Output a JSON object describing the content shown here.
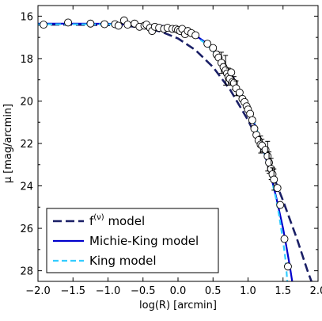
{
  "chart_data": {
    "type": "line",
    "xlabel": "log(R) [arcmin]",
    "ylabel": "μ [mag/arcmin]",
    "xlim": [
      -2.0,
      2.0
    ],
    "ylim": [
      28.5,
      15.5
    ],
    "y_inverted": true,
    "xticks": [
      -2.0,
      -1.5,
      -1.0,
      -0.5,
      0.0,
      0.5,
      1.0,
      1.5,
      2.0
    ],
    "xtick_labels": [
      "−2.0",
      "−1.5",
      "−1.0",
      "−0.5",
      "0.0",
      "0.5",
      "1.0",
      "1.5",
      "2.0"
    ],
    "yticks": [
      16,
      18,
      20,
      22,
      24,
      26,
      28
    ],
    "ytick_labels": [
      "16",
      "18",
      "20",
      "22",
      "24",
      "26",
      "28"
    ],
    "grid": false,
    "legend_position": "bottom-left",
    "legend": [
      {
        "label": "f",
        "superscript": "(ν)",
        "suffix": " model",
        "series": "fnu"
      },
      {
        "label": "Michie-King model",
        "series": "michie"
      },
      {
        "label": "King model",
        "series": "king"
      }
    ],
    "series": [
      {
        "name": "f(ν) model",
        "id": "fnu",
        "style": "dashed",
        "color": "#1a1f66",
        "x": [
          -2.0,
          -1.5,
          -1.0,
          -0.75,
          -0.5,
          -0.25,
          0.0,
          0.25,
          0.5,
          0.75,
          1.0,
          1.25,
          1.5,
          1.7,
          1.85,
          1.95
        ],
        "y": [
          16.4,
          16.4,
          16.42,
          16.45,
          16.55,
          16.72,
          17.05,
          17.6,
          18.4,
          19.5,
          20.9,
          22.6,
          24.7,
          26.5,
          28.0,
          28.9
        ]
      },
      {
        "name": "Michie-King model",
        "id": "michie",
        "style": "solid",
        "color": "#0000cc",
        "x": [
          -2.0,
          -1.5,
          -1.0,
          -0.5,
          -0.25,
          0.0,
          0.2,
          0.4,
          0.6,
          0.8,
          1.0,
          1.1,
          1.2,
          1.3,
          1.4,
          1.5,
          1.55,
          1.6,
          1.65
        ],
        "y": [
          16.35,
          16.35,
          16.36,
          16.4,
          16.45,
          16.58,
          16.8,
          17.25,
          17.95,
          18.95,
          20.3,
          21.15,
          22.1,
          23.2,
          24.5,
          26.0,
          26.9,
          27.85,
          28.9
        ]
      },
      {
        "name": "King model",
        "id": "king",
        "style": "dashed",
        "color": "#33ccff",
        "x": [
          -2.0,
          -1.5,
          -1.0,
          -0.5,
          0.0,
          0.2,
          0.4,
          0.6,
          0.8,
          1.0,
          1.1,
          1.2,
          1.3,
          1.4,
          1.45,
          1.5,
          1.54,
          1.57
        ],
        "y": [
          16.38,
          16.38,
          16.38,
          16.42,
          16.6,
          16.85,
          17.3,
          18.0,
          19.0,
          20.25,
          21.1,
          22.05,
          23.2,
          24.6,
          25.5,
          26.6,
          27.6,
          28.9
        ]
      },
      {
        "name": "data",
        "id": "data",
        "style": "points",
        "color": "#ffffff",
        "x": [
          -1.92,
          -1.57,
          -1.25,
          -1.05,
          -0.9,
          -0.85,
          -0.77,
          -0.72,
          -0.62,
          -0.55,
          -0.48,
          -0.45,
          -0.4,
          -0.37,
          -0.33,
          -0.27,
          -0.2,
          -0.15,
          -0.08,
          -0.03,
          0.0,
          0.03,
          0.06,
          0.1,
          0.14,
          0.19,
          0.25,
          0.42,
          0.5,
          0.55,
          0.58,
          0.62,
          0.65,
          0.68,
          0.7,
          0.72,
          0.74,
          0.76,
          0.78,
          0.8,
          0.83,
          0.88,
          0.92,
          0.95,
          0.98,
          1.0,
          1.03,
          1.06,
          1.09,
          1.12,
          1.15,
          1.18,
          1.2,
          1.25,
          1.28,
          1.3,
          1.33,
          1.35,
          1.37,
          1.42,
          1.46,
          1.52,
          1.57
        ],
        "y": [
          16.4,
          16.3,
          16.35,
          16.38,
          16.38,
          16.45,
          16.2,
          16.4,
          16.35,
          16.5,
          16.45,
          16.4,
          16.55,
          16.7,
          16.5,
          16.55,
          16.6,
          16.55,
          16.6,
          16.6,
          16.65,
          16.7,
          16.6,
          16.85,
          16.7,
          16.8,
          16.9,
          17.3,
          17.5,
          17.8,
          17.95,
          18.2,
          18.4,
          18.55,
          18.7,
          18.85,
          18.95,
          18.65,
          19.1,
          19.15,
          19.4,
          19.6,
          19.9,
          20.05,
          20.25,
          20.4,
          20.6,
          20.9,
          21.3,
          21.6,
          21.85,
          22.05,
          22.1,
          22.3,
          22.6,
          22.9,
          23.2,
          23.45,
          23.7,
          24.1,
          24.9,
          26.5,
          27.8
        ],
        "yerr": [
          0,
          0,
          0,
          0,
          0,
          0,
          0,
          0,
          0,
          0,
          0,
          0,
          0,
          0,
          0,
          0,
          0,
          0,
          0,
          0,
          0,
          0,
          0,
          0,
          0,
          0,
          0,
          0,
          0,
          0.15,
          0,
          0.5,
          0.15,
          0.7,
          0,
          0.4,
          0,
          0,
          0,
          0.3,
          0.35,
          0,
          0,
          0,
          0,
          0,
          0,
          0,
          0,
          0,
          0,
          0.4,
          0.3,
          0,
          0.7,
          0.5,
          0.5,
          0.3,
          0.5,
          0,
          0,
          0,
          0
        ]
      }
    ]
  }
}
